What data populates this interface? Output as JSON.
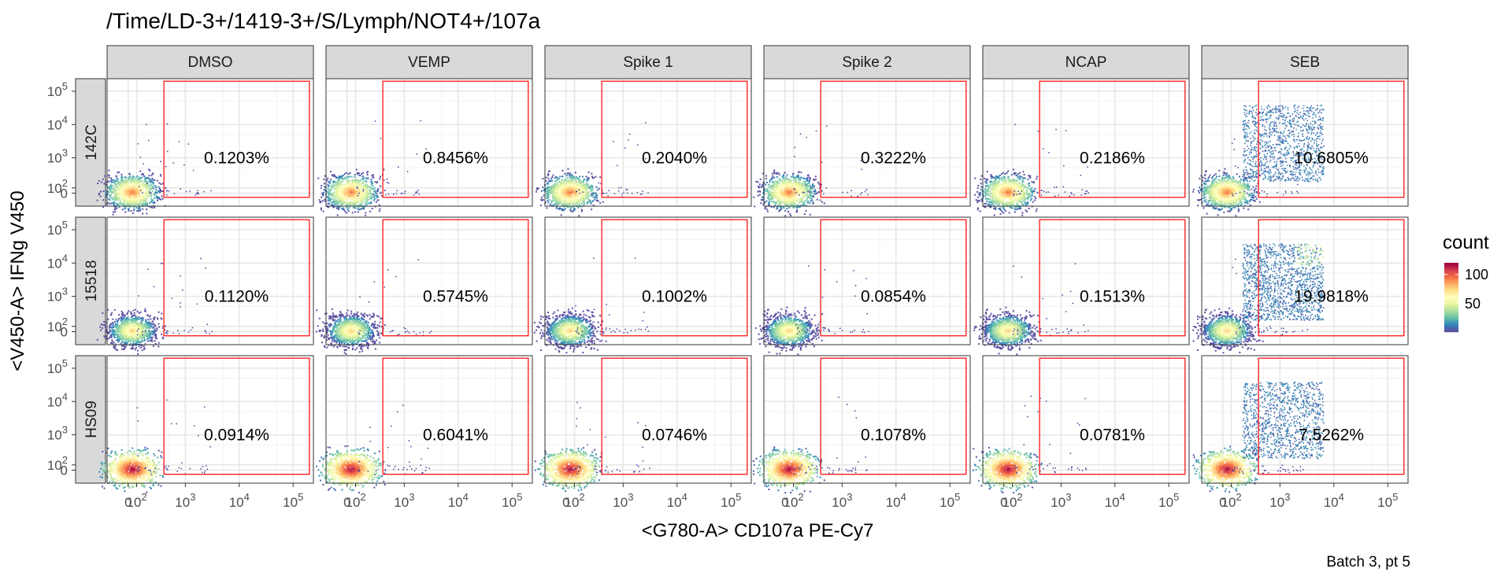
{
  "chart_data": {
    "type": "scatter",
    "subtype": "faceted 2D-density flow cytometry plot",
    "title": "/Time/LD-3+/1419-3+/S/Lymph/NOT4+/107a",
    "xlabel": "<G780-A> CD107a PE-Cy7",
    "ylabel": "<V450-A> IFNg V450",
    "caption": "Batch 3, pt 5",
    "columns": [
      "DMSO",
      "VEMP",
      "Spike 1",
      "Spike 2",
      "NCAP",
      "SEB"
    ],
    "rows": [
      "142C",
      "15518",
      "HS09"
    ],
    "x_scale": "biexponential (logicle)",
    "y_scale": "biexponential (logicle)",
    "x_ticks": [
      "0",
      "10^2",
      "10^3",
      "10^4",
      "10^5"
    ],
    "y_ticks": [
      "10^5",
      "10^4",
      "10^3",
      "10^2",
      "0"
    ],
    "gate": {
      "x_range": [
        400,
        200000
      ],
      "y_range": [
        -80,
        200000
      ],
      "color": "#ff0000"
    },
    "gate_percentages": [
      [
        "0.1203%",
        "0.8456%",
        "0.2040%",
        "0.3222%",
        "0.2186%",
        "10.6805%"
      ],
      [
        "0.1120%",
        "0.5745%",
        "0.1002%",
        "0.0854%",
        "0.1513%",
        "19.9818%"
      ],
      [
        "0.0914%",
        "0.6041%",
        "0.0746%",
        "0.1078%",
        "0.0781%",
        "7.5262%"
      ]
    ],
    "legend": {
      "title": "count",
      "ticks": [
        100,
        50
      ],
      "range": [
        1,
        120
      ],
      "palette": "Spectral (reversed)",
      "placement": "right"
    },
    "grid": true
  },
  "colors": {
    "strip_fill": "#d9d9d9",
    "panel_background": "#ffffff",
    "grid_major": "#e6e6e6",
    "gate": "#ff0000",
    "palette": [
      "#5e4fa2",
      "#3288bd",
      "#66c2a5",
      "#abdda4",
      "#e6f598",
      "#ffffbf",
      "#fee08b",
      "#fdae61",
      "#f46d43",
      "#d53e4f",
      "#9e0142"
    ]
  }
}
